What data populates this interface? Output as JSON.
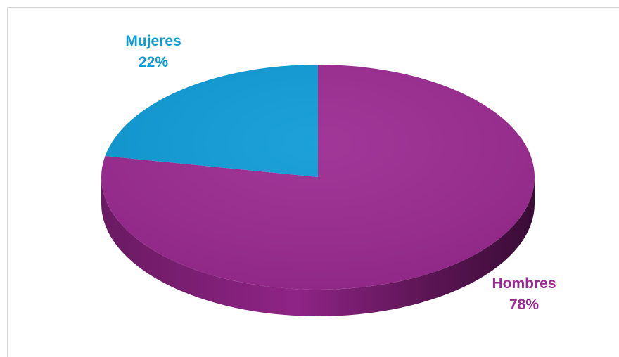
{
  "chart_data": {
    "type": "pie",
    "style": "3d",
    "slices": [
      {
        "name": "Mujeres",
        "value": 22,
        "percent_label": "22%",
        "color": "#0e9bd6"
      },
      {
        "name": "Hombres",
        "value": 78,
        "percent_label": "78%",
        "color": "#9b2a91"
      }
    ]
  }
}
